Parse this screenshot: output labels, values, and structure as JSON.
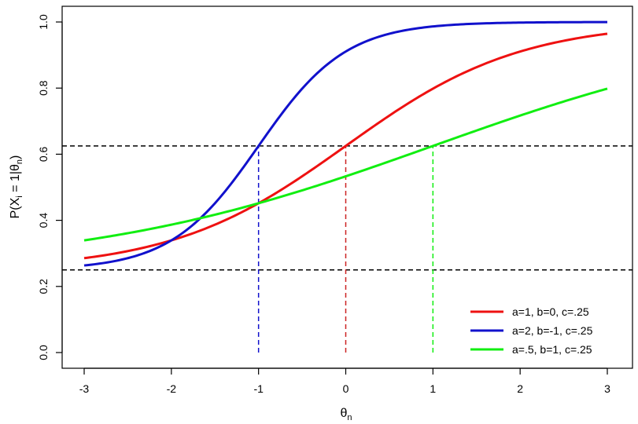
{
  "chart_data": {
    "type": "line",
    "xlabel_main": "θ",
    "xlabel_sub": "n",
    "ylabel": {
      "prefix": "P(X",
      "sub_i": "i",
      "mid": " = 1|θ",
      "sub_n": "n",
      "suffix": ")"
    },
    "xlim": [
      -3,
      3
    ],
    "ylim": [
      0,
      1
    ],
    "x_ticks": [
      -3,
      -2,
      -1,
      0,
      1,
      2,
      3
    ],
    "x_tick_labels": [
      "-3",
      "-2",
      "-1",
      "0",
      "1",
      "2",
      "3"
    ],
    "y_ticks": [
      0,
      0.2,
      0.4,
      0.6,
      0.8,
      1.0
    ],
    "y_tick_labels": [
      "0.0",
      "0.2",
      "0.4",
      "0.6",
      "0.8",
      "1.0"
    ],
    "grid": false,
    "legend_position": "bottom-right",
    "series": [
      {
        "name": "a=1, b=0, c=.25",
        "a": 1,
        "b": 0,
        "c": 0.25,
        "color": "#ee1111"
      },
      {
        "name": "a=2, b=-1, c=.25",
        "a": 2,
        "b": -1,
        "c": 0.25,
        "color": "#1111cc"
      },
      {
        "name": "a=.5, b=1, c=.25",
        "a": 0.5,
        "b": 1,
        "c": 0.25,
        "color": "#11ee11"
      }
    ],
    "reference_lines": {
      "horizontal": [
        {
          "y": 0.625,
          "color": "#000000"
        },
        {
          "y": 0.25,
          "color": "#000000"
        }
      ],
      "vertical": [
        {
          "x": -1,
          "y_top": 0.625,
          "color": "#1111cc"
        },
        {
          "x": 0,
          "y_top": 0.625,
          "color": "#cc2222"
        },
        {
          "x": 1,
          "y_top": 0.625,
          "color": "#11ee11"
        }
      ]
    }
  }
}
